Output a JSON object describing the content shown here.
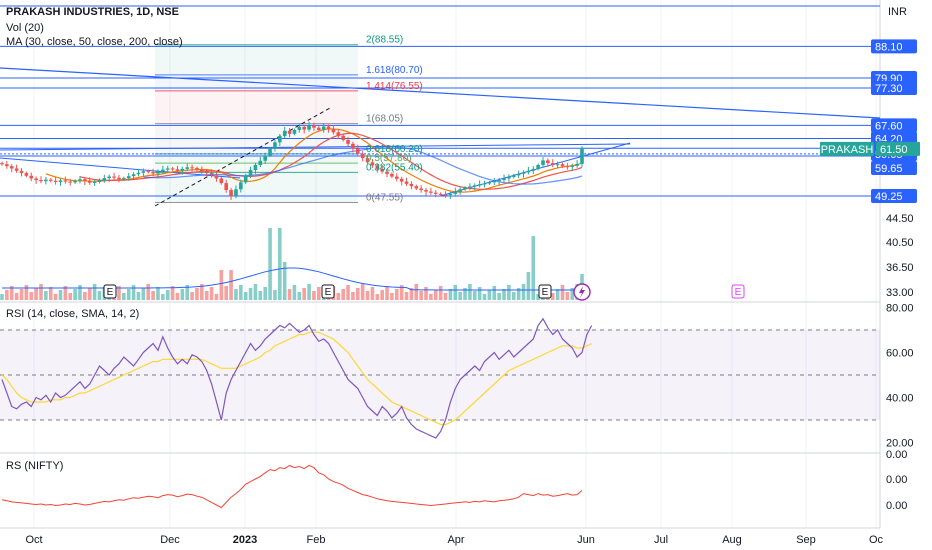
{
  "header": {
    "title": "PRAKASH INDUSTRIES, 1D, NSE",
    "vol_label": "Vol (20)",
    "ma_label": "MA (30, close, 50, close, 200, close)",
    "rsi_label": "RSI (14, close, SMA, 14, 2)",
    "rs_label": "RS (NIFTY)",
    "currency": "INR"
  },
  "colors": {
    "up": "#26a69a",
    "down": "#ef5350",
    "hline": "#2962ff",
    "rsi": "#7e57c2",
    "rsi_sma": "#fdd835",
    "rs": "#f44336",
    "ma30": "#f57c00",
    "ma50": "#ef5350",
    "ma200": "#2962ff",
    "price_badge": "#26a69a",
    "axis_badge": "#2962ff"
  },
  "chart_data": [
    {
      "type": "candlestick",
      "name": "price",
      "x_ticks": [
        "Oct",
        "Dec",
        "2023",
        "Feb",
        "Apr",
        "Jun",
        "Jul",
        "Aug",
        "Sep",
        "Oc"
      ],
      "price_axis_labels": [
        "88.10",
        "79.90",
        "77.30",
        "67.60",
        "64.20",
        "61.65",
        "59.65",
        "59.65",
        "49.25"
      ],
      "current_price": "61.50",
      "ticker_badge": "PRAKASH",
      "fib_levels": [
        {
          "label": "2(88.55)",
          "value": 88.55
        },
        {
          "label": "1.618(80.70)",
          "value": 80.7
        },
        {
          "label": "1.414(76.55)",
          "value": 76.55
        },
        {
          "label": "1(68.05)",
          "value": 68.05
        },
        {
          "label": "0.618(60.20)",
          "value": 60.2
        },
        {
          "label": "0.5(57.80)",
          "value": 57.8
        },
        {
          "label": "0.382(55.40)",
          "value": 55.4
        },
        {
          "label": "0(47.55)",
          "value": 47.55
        }
      ],
      "closes": [
        57.5,
        57.0,
        56.4,
        55.8,
        55.2,
        54.5,
        53.8,
        53.4,
        53.1,
        53.5,
        53.2,
        52.9,
        53.3,
        53.0,
        52.8,
        53.2,
        53.6,
        53.1,
        52.7,
        52.9,
        53.4,
        53.9,
        54.3,
        54.0,
        53.6,
        53.9,
        54.4,
        54.9,
        55.3,
        55.7,
        55.5,
        55.1,
        55.6,
        56.1,
        56.4,
        56.2,
        55.8,
        56.3,
        56.7,
        56.5,
        56.1,
        55.7,
        55.2,
        54.6,
        53.8,
        52.6,
        50.8,
        49.2,
        51.0,
        52.8,
        54.6,
        56.0,
        57.3,
        58.4,
        59.8,
        61.5,
        63.2,
        64.8,
        66.2,
        65.4,
        66.4,
        67.2,
        66.5,
        67.6,
        67.0,
        66.4,
        67.3,
        66.7,
        65.8,
        64.9,
        63.8,
        62.8,
        61.6,
        60.2,
        59.1,
        58.0,
        57.2,
        56.3,
        55.6,
        55.0,
        54.3,
        53.7,
        53.0,
        52.4,
        51.8,
        51.2,
        50.8,
        50.4,
        50.1,
        49.8,
        49.6,
        49.5,
        49.8,
        50.4,
        51.0,
        51.4,
        51.7,
        52.0,
        52.3,
        52.5,
        52.8,
        53.1,
        53.4,
        53.8,
        54.2,
        54.6,
        55.0,
        55.4,
        55.8,
        56.3,
        57.3,
        58.5,
        57.8,
        57.3,
        57.5,
        57.0,
        56.8,
        57.1,
        57.6,
        61.5
      ],
      "volume_spikes": [
        "Dec",
        "2023",
        "Apr",
        "Jun"
      ],
      "volume_axis_labels": [
        "44.50",
        "40.50",
        "36.50",
        "33.00"
      ],
      "earnings_markers": [
        "E",
        "E",
        "E",
        "E"
      ]
    },
    {
      "type": "line",
      "name": "RSI",
      "axis_labels": [
        "80.00",
        "60.00",
        "40.00",
        "20.00"
      ],
      "ylim": [
        20,
        80
      ],
      "bands": [
        70,
        50,
        30
      ],
      "values": [
        48,
        42,
        36,
        35,
        37,
        38,
        36,
        40,
        39,
        41,
        38,
        42,
        40,
        41,
        43,
        45,
        47,
        44,
        46,
        50,
        54,
        52,
        50,
        53,
        55,
        58,
        56,
        54,
        57,
        60,
        62,
        64,
        61,
        67,
        62,
        58,
        55,
        57,
        55,
        59,
        58,
        56,
        52,
        46,
        38,
        30,
        42,
        48,
        52,
        56,
        60,
        64,
        61,
        63,
        66,
        68,
        70,
        72,
        71,
        73,
        71,
        69,
        70,
        72,
        68,
        65,
        66,
        64,
        60,
        56,
        52,
        48,
        46,
        44,
        40,
        36,
        34,
        32,
        36,
        34,
        31,
        33,
        36,
        31,
        28,
        26,
        25,
        24,
        23,
        22,
        25,
        30,
        38,
        44,
        48,
        50,
        52,
        54,
        52,
        56,
        58,
        60,
        57,
        59,
        61,
        58,
        60,
        62,
        64,
        66,
        72,
        75,
        71,
        68,
        70,
        66,
        64,
        62,
        58,
        60,
        68,
        72
      ],
      "sma_values": [
        50,
        48,
        45,
        42,
        40,
        39,
        38,
        38,
        38,
        38,
        39,
        39,
        39,
        40,
        40,
        41,
        42,
        42,
        43,
        44,
        45,
        46,
        47,
        48,
        49,
        50,
        51,
        52,
        53,
        54,
        55,
        56,
        56,
        57,
        57,
        57,
        57,
        57,
        57,
        57,
        57,
        57,
        56,
        55,
        54,
        53,
        53,
        53,
        53,
        54,
        55,
        56,
        57,
        58,
        60,
        61,
        63,
        64,
        65,
        66,
        67,
        68,
        68,
        69,
        69,
        69,
        68,
        67,
        66,
        64,
        62,
        60,
        57,
        54,
        51,
        48,
        46,
        44,
        42,
        40,
        38,
        37,
        36,
        35,
        34,
        33,
        32,
        31,
        30,
        29,
        28,
        28,
        29,
        30,
        32,
        34,
        36,
        38,
        40,
        42,
        44,
        46,
        48,
        50,
        52,
        53,
        54,
        55,
        56,
        57,
        58,
        59,
        60,
        61,
        62,
        63,
        63,
        63,
        62,
        62,
        63,
        64
      ]
    },
    {
      "type": "line",
      "name": "RS (NIFTY)",
      "axis_labels": [
        "0.00",
        "0.00",
        "0.00"
      ],
      "values": [
        0.1,
        0.08,
        0.06,
        0.05,
        0.04,
        0.03,
        0.02,
        0.01,
        0.02,
        0.0,
        0.01,
        -0.01,
        0.0,
        0.02,
        0.01,
        0.03,
        0.02,
        0.0,
        0.01,
        0.03,
        0.05,
        0.07,
        0.06,
        0.08,
        0.1,
        0.09,
        0.12,
        0.14,
        0.13,
        0.15,
        0.17,
        0.16,
        0.14,
        0.18,
        0.2,
        0.19,
        0.16,
        0.18,
        0.21,
        0.2,
        0.17,
        0.15,
        0.1,
        0.05,
        0.0,
        -0.05,
        0.05,
        0.15,
        0.22,
        0.3,
        0.4,
        0.45,
        0.5,
        0.55,
        0.62,
        0.68,
        0.66,
        0.72,
        0.7,
        0.76,
        0.72,
        0.74,
        0.7,
        0.76,
        0.72,
        0.62,
        0.58,
        0.5,
        0.45,
        0.42,
        0.38,
        0.32,
        0.28,
        0.24,
        0.2,
        0.18,
        0.15,
        0.12,
        0.1,
        0.08,
        0.07,
        0.06,
        0.05,
        0.04,
        0.03,
        0.02,
        0.01,
        0.0,
        -0.01,
        0.0,
        0.01,
        0.02,
        0.03,
        0.04,
        0.05,
        0.06,
        0.05,
        0.07,
        0.06,
        0.08,
        0.07,
        0.06,
        0.08,
        0.09,
        0.1,
        0.12,
        0.15,
        0.22,
        0.2,
        0.18,
        0.22,
        0.19,
        0.2,
        0.17,
        0.18,
        0.2,
        0.22,
        0.19,
        0.2,
        0.28
      ]
    }
  ]
}
